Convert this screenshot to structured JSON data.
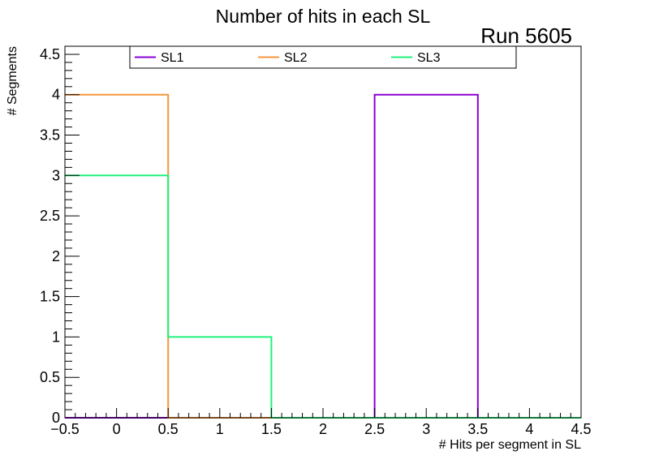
{
  "chart_data": {
    "type": "histogram",
    "title": "Number of hits in each SL",
    "annotation": "Run 5605",
    "xlabel": "# Hits per segment in SL",
    "ylabel": "# Segments",
    "xlim": [
      -0.5,
      4.5
    ],
    "ylim": [
      0,
      4.6
    ],
    "bin_edges": [
      -0.5,
      0.5,
      1.5,
      2.5,
      3.5,
      4.5
    ],
    "x_ticks": [
      -0.5,
      0,
      0.5,
      1,
      1.5,
      2,
      2.5,
      3,
      3.5,
      4,
      4.5
    ],
    "x_tick_labels": [
      "−0.5",
      "0",
      "0.5",
      "1",
      "1.5",
      "2",
      "2.5",
      "3",
      "3.5",
      "4",
      "4.5"
    ],
    "y_ticks": [
      0,
      0.5,
      1,
      1.5,
      2,
      2.5,
      3,
      3.5,
      4,
      4.5
    ],
    "y_tick_labels": [
      "0",
      "0.5",
      "1",
      "1.5",
      "2",
      "2.5",
      "3",
      "3.5",
      "4",
      "4.5"
    ],
    "series": [
      {
        "name": "SL1",
        "color": "#8a00d4",
        "values": [
          0,
          0,
          0,
          4,
          0
        ]
      },
      {
        "name": "SL2",
        "color": "#f7953b",
        "values": [
          4,
          0,
          0,
          0,
          0
        ]
      },
      {
        "name": "SL3",
        "color": "#1ef27a",
        "values": [
          3,
          1,
          0,
          0,
          0
        ]
      }
    ],
    "legend": {
      "position": "top",
      "entries": [
        "SL1",
        "SL2",
        "SL3"
      ]
    }
  }
}
